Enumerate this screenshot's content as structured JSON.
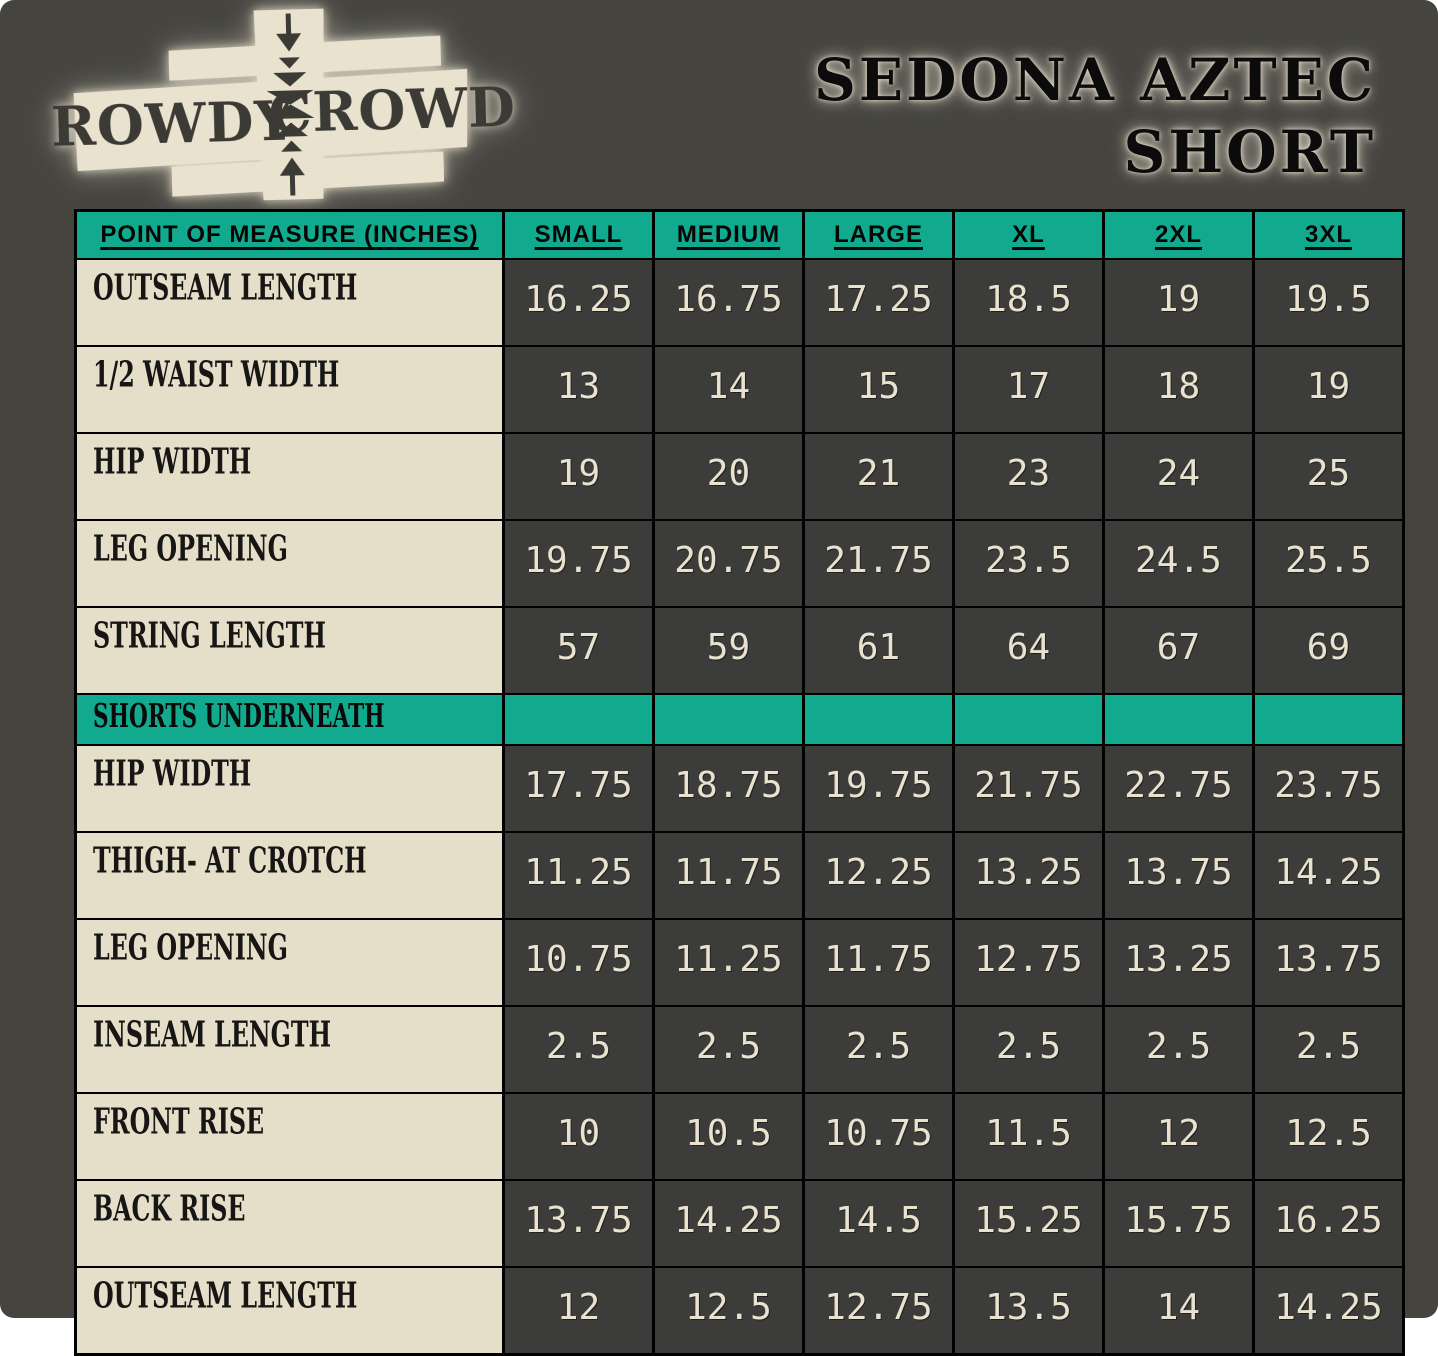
{
  "brand": {
    "logo_left": "ROWDY",
    "logo_right": "CROWD"
  },
  "title": {
    "line1": "SEDONA AZTEC",
    "line2": "SHORT"
  },
  "colors": {
    "background": "#45443f",
    "teal_header": "#12aa8e",
    "label_cream": "#e5dec9",
    "value_cell_dark": "#3c3c3a",
    "value_text_cream": "#e9e2cf",
    "border_black": "#000000"
  },
  "chart_data": {
    "type": "table",
    "title": "SEDONA AZTEC SHORT",
    "units": "INCHES",
    "columns": [
      "POINT OF MEASURE (INCHES)",
      "SMALL",
      "MEDIUM",
      "LARGE",
      "XL",
      "2XL",
      "3XL"
    ],
    "rows": [
      {
        "label": "OUTSEAM LENGTH",
        "section": false,
        "values": [
          "16.25",
          "16.75",
          "17.25",
          "18.5",
          "19",
          "19.5"
        ]
      },
      {
        "label": "1/2 WAIST WIDTH",
        "section": false,
        "values": [
          "13",
          "14",
          "15",
          "17",
          "18",
          "19"
        ]
      },
      {
        "label": "HIP WIDTH",
        "section": false,
        "values": [
          "19",
          "20",
          "21",
          "23",
          "24",
          "25"
        ]
      },
      {
        "label": "LEG OPENING",
        "section": false,
        "values": [
          "19.75",
          "20.75",
          "21.75",
          "23.5",
          "24.5",
          "25.5"
        ]
      },
      {
        "label": "STRING LENGTH",
        "section": false,
        "values": [
          "57",
          "59",
          "61",
          "64",
          "67",
          "69"
        ]
      },
      {
        "label": "SHORTS UNDERNEATH",
        "section": true,
        "values": [
          "",
          "",
          "",
          "",
          "",
          ""
        ]
      },
      {
        "label": "HIP WIDTH",
        "section": false,
        "values": [
          "17.75",
          "18.75",
          "19.75",
          "21.75",
          "22.75",
          "23.75"
        ]
      },
      {
        "label": "THIGH- AT CROTCH",
        "section": false,
        "values": [
          "11.25",
          "11.75",
          "12.25",
          "13.25",
          "13.75",
          "14.25"
        ]
      },
      {
        "label": "LEG OPENING",
        "section": false,
        "values": [
          "10.75",
          "11.25",
          "11.75",
          "12.75",
          "13.25",
          "13.75"
        ]
      },
      {
        "label": "INSEAM LENGTH",
        "section": false,
        "values": [
          "2.5",
          "2.5",
          "2.5",
          "2.5",
          "2.5",
          "2.5"
        ]
      },
      {
        "label": "FRONT RISE",
        "section": false,
        "values": [
          "10",
          "10.5",
          "10.75",
          "11.5",
          "12",
          "12.5"
        ]
      },
      {
        "label": "BACK RISE",
        "section": false,
        "values": [
          "13.75",
          "14.25",
          "14.5",
          "15.25",
          "15.75",
          "16.25"
        ]
      },
      {
        "label": "OUTSEAM LENGTH",
        "section": false,
        "values": [
          "12",
          "12.5",
          "12.75",
          "13.5",
          "14",
          "14.25"
        ]
      }
    ]
  }
}
